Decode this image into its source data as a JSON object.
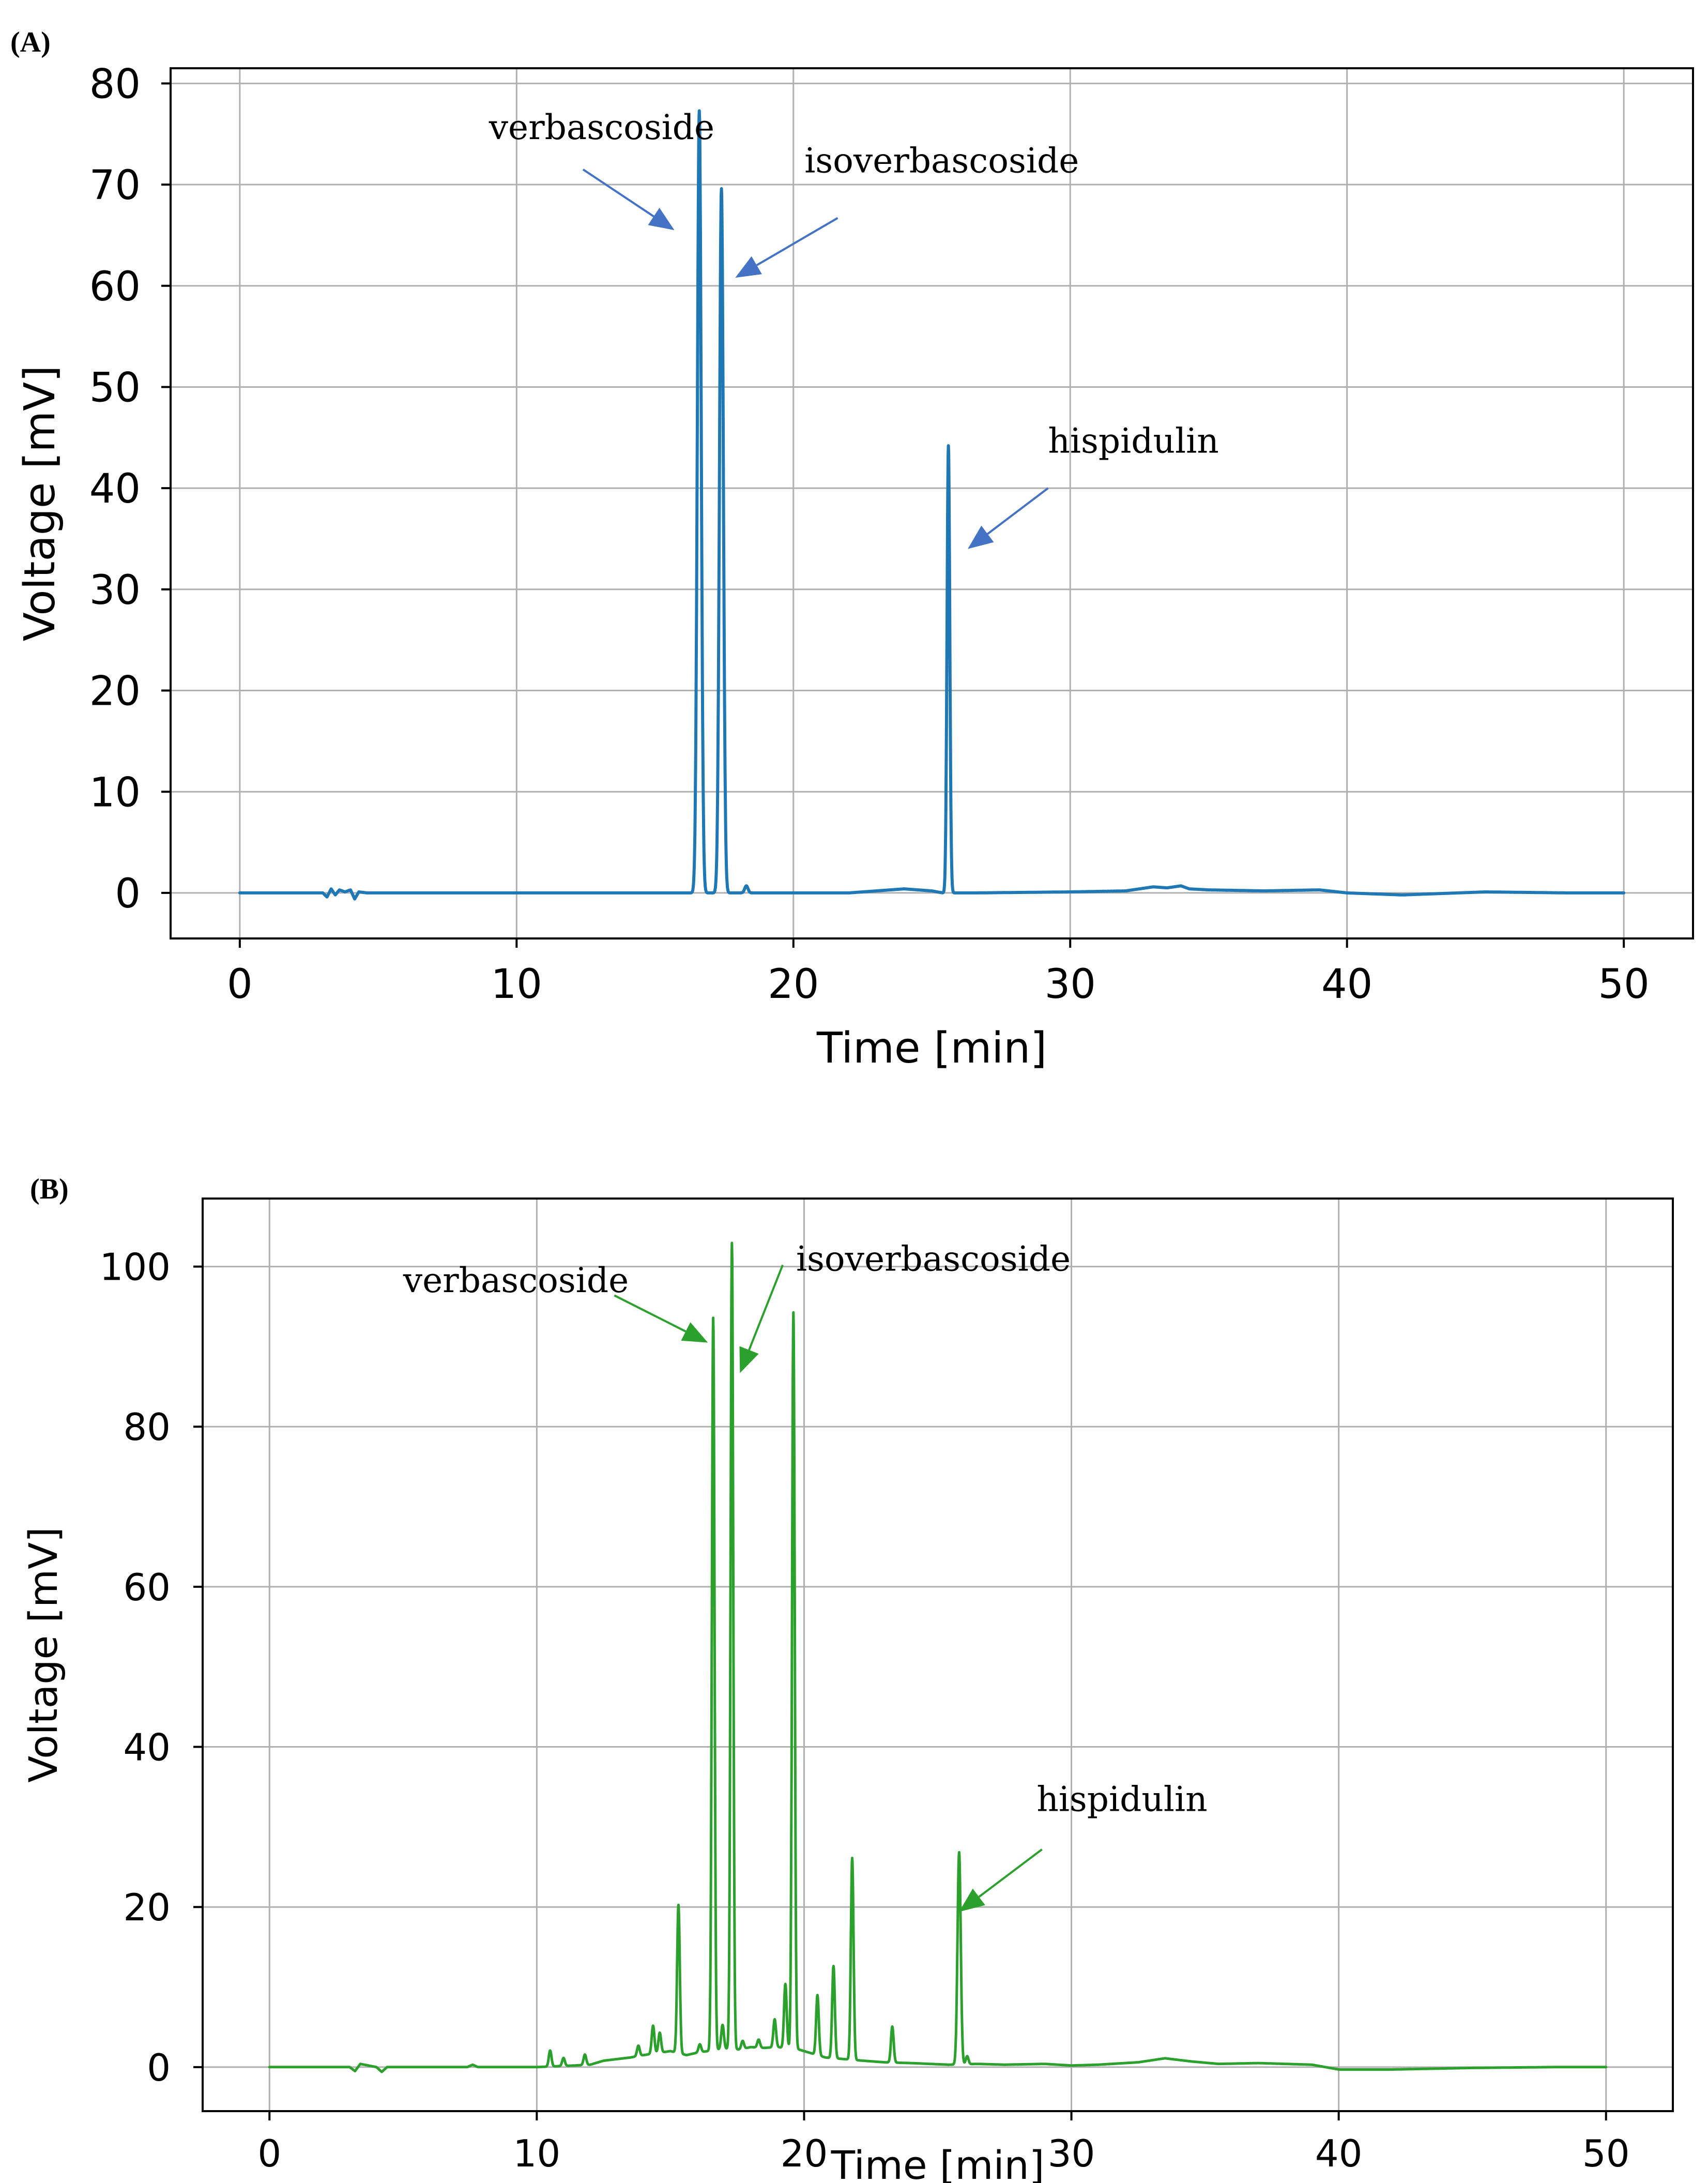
{
  "chart_data": [
    {
      "panel_label": "(A)",
      "type": "line",
      "xlabel": "Time [min]",
      "ylabel": "Voltage [mV]",
      "xlim": [
        -2.5,
        52.5
      ],
      "ylim": [
        -4.5,
        81.5
      ],
      "xticks": [
        0,
        10,
        20,
        30,
        40,
        50
      ],
      "yticks": [
        0,
        10,
        20,
        30,
        40,
        50,
        60,
        70,
        80
      ],
      "grid": true,
      "color": "#1f77b4",
      "arrow_color": "#4472c4",
      "baseline": [
        [
          0,
          0
        ],
        [
          3.0,
          0
        ],
        [
          3.15,
          -0.4
        ],
        [
          3.3,
          0.4
        ],
        [
          3.45,
          -0.2
        ],
        [
          3.6,
          0.3
        ],
        [
          3.8,
          0.1
        ],
        [
          4.0,
          0.3
        ],
        [
          4.15,
          -0.6
        ],
        [
          4.3,
          0.1
        ],
        [
          4.6,
          0
        ],
        [
          8,
          0
        ],
        [
          14,
          0
        ],
        [
          18.5,
          0
        ],
        [
          22,
          0
        ],
        [
          23,
          0.2
        ],
        [
          24,
          0.4
        ],
        [
          25,
          0.2
        ],
        [
          25.4,
          0
        ],
        [
          26.5,
          0
        ],
        [
          30,
          0.1
        ],
        [
          32,
          0.2
        ],
        [
          33,
          0.6
        ],
        [
          33.5,
          0.5
        ],
        [
          34,
          0.7
        ],
        [
          34.3,
          0.4
        ],
        [
          35,
          0.3
        ],
        [
          37,
          0.2
        ],
        [
          39,
          0.3
        ],
        [
          40,
          0
        ],
        [
          42,
          -0.2
        ],
        [
          45,
          0.1
        ],
        [
          48,
          0
        ],
        [
          50,
          0
        ]
      ],
      "peaks": [
        {
          "x": 16.6,
          "y": 77.3,
          "w": 0.07
        },
        {
          "x": 17.4,
          "y": 69.6,
          "w": 0.07
        },
        {
          "x": 18.3,
          "y": 0.7,
          "w": 0.06
        },
        {
          "x": 25.6,
          "y": 44.2,
          "w": 0.05
        }
      ],
      "annotations": [
        {
          "text": "verbascoside",
          "text_x": 9.0,
          "text_y": 74.5,
          "tail": [
            12.4,
            71.5
          ],
          "head": [
            15.7,
            65.5
          ]
        },
        {
          "text": "isoverbascoside",
          "text_x": 20.4,
          "text_y": 71.2,
          "tail": [
            21.6,
            66.7
          ],
          "head": [
            17.9,
            60.8
          ]
        },
        {
          "text": "hispidulin",
          "text_x": 29.2,
          "text_y": 43.5,
          "tail": [
            29.2,
            40.0
          ],
          "head": [
            26.3,
            34.0
          ]
        }
      ]
    },
    {
      "panel_label": "(B)",
      "type": "line",
      "xlabel": "Time [min]",
      "ylabel": "Voltage [mV]",
      "xlim": [
        -2.5,
        52.5
      ],
      "ylim": [
        -5.5,
        108.5
      ],
      "xticks": [
        0,
        10,
        20,
        30,
        40,
        50
      ],
      "yticks": [
        0,
        20,
        40,
        60,
        80,
        100
      ],
      "grid": true,
      "color": "#2ca02c",
      "arrow_color": "#2ca02c",
      "baseline": [
        [
          0,
          0
        ],
        [
          3.0,
          0
        ],
        [
          3.2,
          -0.5
        ],
        [
          3.4,
          0.4
        ],
        [
          3.7,
          0.2
        ],
        [
          4.0,
          0
        ],
        [
          4.2,
          -0.6
        ],
        [
          4.4,
          0
        ],
        [
          7.4,
          0
        ],
        [
          7.6,
          0.3
        ],
        [
          7.8,
          0
        ],
        [
          10.0,
          0
        ],
        [
          11.4,
          0.2
        ],
        [
          12.0,
          0.3
        ],
        [
          12.5,
          0.8
        ],
        [
          13.0,
          1.0
        ],
        [
          13.5,
          1.2
        ],
        [
          14.0,
          1.5
        ],
        [
          14.6,
          1.8
        ],
        [
          15.0,
          2.0
        ],
        [
          15.6,
          1.5
        ],
        [
          16.0,
          1.8
        ],
        [
          16.4,
          2.0
        ],
        [
          17.0,
          2.3
        ],
        [
          17.6,
          2.2
        ],
        [
          18.0,
          2.5
        ],
        [
          18.5,
          2.4
        ],
        [
          19.0,
          2.5
        ],
        [
          19.8,
          2.2
        ],
        [
          20.2,
          1.8
        ],
        [
          20.8,
          1.2
        ],
        [
          21.5,
          1.0
        ],
        [
          22.2,
          0.8
        ],
        [
          23.0,
          0.6
        ],
        [
          24.0,
          0.5
        ],
        [
          25.4,
          0.3
        ],
        [
          26.5,
          0.4
        ],
        [
          27.5,
          0.3
        ],
        [
          29.0,
          0.4
        ],
        [
          30.0,
          0.2
        ],
        [
          31.0,
          0.3
        ],
        [
          32.5,
          0.6
        ],
        [
          33.5,
          1.1
        ],
        [
          34.5,
          0.7
        ],
        [
          35.5,
          0.4
        ],
        [
          37.0,
          0.5
        ],
        [
          39.0,
          0.3
        ],
        [
          40.0,
          -0.3
        ],
        [
          42.0,
          -0.3
        ],
        [
          45.0,
          -0.1
        ],
        [
          48.0,
          0
        ],
        [
          50.0,
          0
        ]
      ],
      "peaks": [
        {
          "x": 10.5,
          "y": 2.0,
          "w": 0.05
        },
        {
          "x": 11.0,
          "y": 1.0,
          "w": 0.05
        },
        {
          "x": 11.8,
          "y": 1.3,
          "w": 0.05
        },
        {
          "x": 13.8,
          "y": 1.3,
          "w": 0.05
        },
        {
          "x": 14.35,
          "y": 3.5,
          "w": 0.05
        },
        {
          "x": 14.6,
          "y": 2.5,
          "w": 0.05
        },
        {
          "x": 15.3,
          "y": 18.5,
          "w": 0.05
        },
        {
          "x": 16.1,
          "y": 1.0,
          "w": 0.05
        },
        {
          "x": 16.6,
          "y": 91.5,
          "w": 0.05
        },
        {
          "x": 16.95,
          "y": 3.0,
          "w": 0.05
        },
        {
          "x": 17.3,
          "y": 100.7,
          "w": 0.05
        },
        {
          "x": 17.7,
          "y": 1.0,
          "w": 0.05
        },
        {
          "x": 18.3,
          "y": 1.0,
          "w": 0.05
        },
        {
          "x": 18.9,
          "y": 3.5,
          "w": 0.05
        },
        {
          "x": 19.3,
          "y": 8.0,
          "w": 0.05
        },
        {
          "x": 19.6,
          "y": 92.0,
          "w": 0.05
        },
        {
          "x": 20.5,
          "y": 7.5,
          "w": 0.05
        },
        {
          "x": 21.1,
          "y": 11.5,
          "w": 0.05
        },
        {
          "x": 21.8,
          "y": 25.2,
          "w": 0.05
        },
        {
          "x": 23.3,
          "y": 4.5,
          "w": 0.05
        },
        {
          "x": 25.8,
          "y": 26.5,
          "w": 0.06
        },
        {
          "x": 26.1,
          "y": 1.0,
          "w": 0.05
        }
      ],
      "annotations": [
        {
          "text": "verbascoside",
          "text_x": 5.0,
          "text_y": 96.8,
          "tail": [
            12.9,
            96.4
          ],
          "head": [
            16.4,
            90.5
          ]
        },
        {
          "text": "isoverbascoside",
          "text_x": 19.7,
          "text_y": 99.5,
          "tail": [
            19.2,
            100.2
          ],
          "head": [
            17.6,
            86.7
          ]
        },
        {
          "text": "hispidulin",
          "text_x": 28.7,
          "text_y": 32.0,
          "tail": [
            28.9,
            27.2
          ],
          "head": [
            25.8,
            19.4
          ]
        }
      ]
    }
  ]
}
